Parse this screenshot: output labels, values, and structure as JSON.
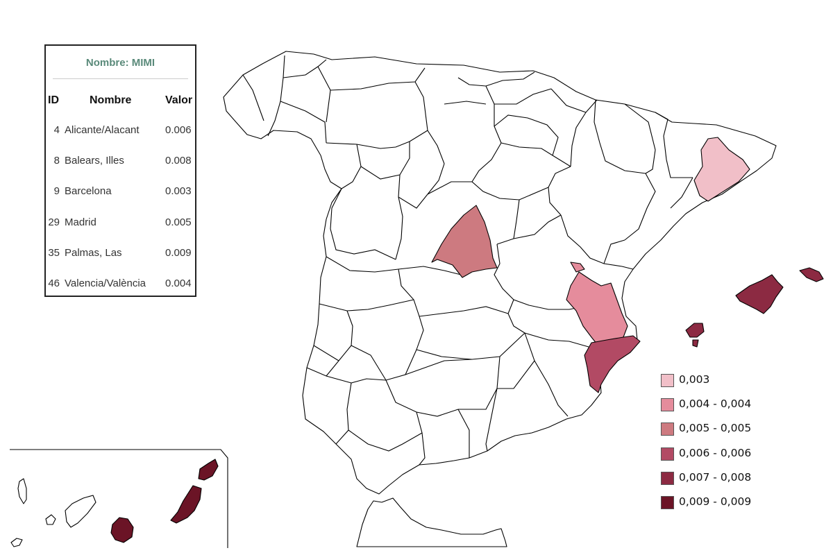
{
  "info_panel": {
    "title": "Nombre: MIMI",
    "headers": {
      "id": "ID",
      "name": "Nombre",
      "value": "Valor"
    },
    "rows": [
      {
        "id": "4",
        "name": "Alicante/Alacant",
        "value": "0.006"
      },
      {
        "id": "8",
        "name": "Balears, Illes",
        "value": "0.008"
      },
      {
        "id": "9",
        "name": "Barcelona",
        "value": "0.003"
      },
      {
        "id": "29",
        "name": "Madrid",
        "value": "0.005"
      },
      {
        "id": "35",
        "name": "Palmas, Las",
        "value": "0.009"
      },
      {
        "id": "46",
        "name": "Valencia/València",
        "value": "0.004"
      }
    ]
  },
  "legend": {
    "items": [
      {
        "label": "0,003",
        "color": "#f1bfc8"
      },
      {
        "label": "0,004 - 0,004",
        "color": "#e58c9c"
      },
      {
        "label": "0,005 - 0,005",
        "color": "#cd7a80"
      },
      {
        "label": "0,006 - 0,006",
        "color": "#b24a64"
      },
      {
        "label": "0,007 - 0,008",
        "color": "#8c2a42"
      },
      {
        "label": "0,009 - 0,009",
        "color": "#6b1426"
      }
    ]
  },
  "map": {
    "default_fill": "#ffffff",
    "border_color": "#000000",
    "highlighted": [
      {
        "province": "Barcelona",
        "value": 0.003,
        "color": "#f1bfc8"
      },
      {
        "province": "Valencia/València",
        "value": 0.004,
        "color": "#e58c9c"
      },
      {
        "province": "Madrid",
        "value": 0.005,
        "color": "#cd7a80"
      },
      {
        "province": "Alicante/Alacant",
        "value": 0.006,
        "color": "#b24a64"
      },
      {
        "province": "Balears, Illes",
        "value": 0.008,
        "color": "#8c2a42"
      },
      {
        "province": "Palmas, Las",
        "value": 0.009,
        "color": "#6b1426"
      }
    ]
  }
}
